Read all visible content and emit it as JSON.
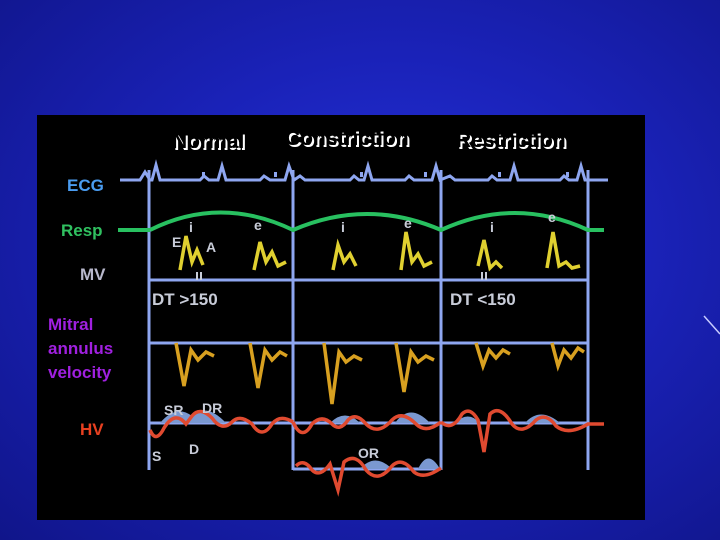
{
  "columns": {
    "normal": "Normal",
    "constriction": "Constriction",
    "restriction": "Restriction"
  },
  "rows": {
    "ecg": "ECG",
    "resp": "Resp",
    "mv": "MV",
    "mitral_line1": "Mitral",
    "mitral_line2": "annulus",
    "mitral_line3": "velocity",
    "hv": "HV"
  },
  "annotations": {
    "e_wave": "E",
    "a_wave": "A",
    "insp": "i",
    "exp": "e",
    "dt_normal": "DT >150",
    "dt_restriction": "DT <150",
    "sr": "SR",
    "dr": "DR",
    "s": "S",
    "d": "D",
    "or": "OR"
  },
  "colors": {
    "background": "#1a22b8",
    "panel": "#000000",
    "grid": "#8ea6f0",
    "ecg_label": "#4a9cf0",
    "resp_label": "#30c060",
    "mv_label": "#b8b8cc",
    "mitral_label": "#a020e0",
    "hv_label": "#e84020",
    "resp_trace": "#28c060",
    "mv_trace": "#e0d030",
    "annulus_trace": "#d8a020",
    "hv_trace": "#e04a30",
    "hv_fill": "#7a98d0"
  }
}
